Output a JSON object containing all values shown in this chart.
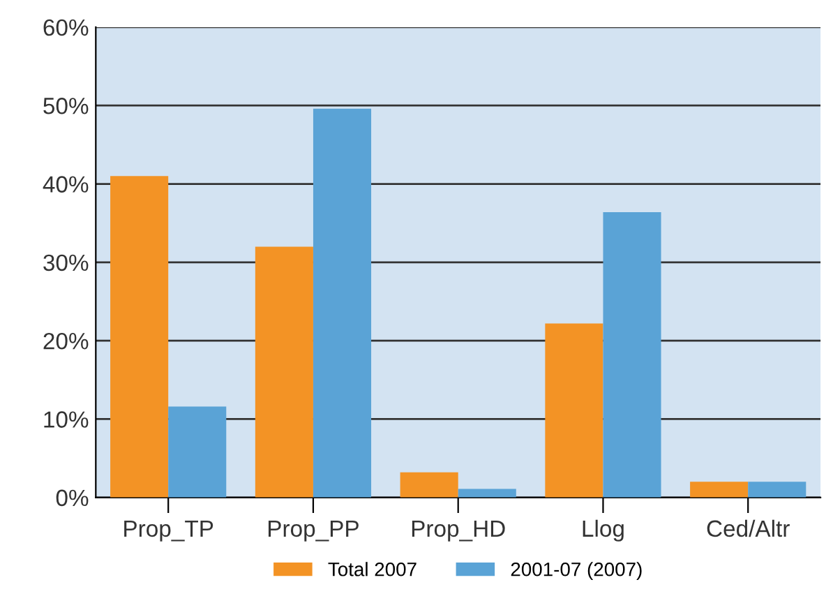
{
  "chart_data": {
    "type": "bar",
    "categories": [
      "Prop_TP",
      "Prop_PP",
      "Prop_HD",
      "Llog",
      "Ced/Altr"
    ],
    "series": [
      {
        "name": "Total 2007",
        "color": "#f39325",
        "values": [
          41.0,
          32.0,
          3.2,
          22.2,
          2.0
        ]
      },
      {
        "name": "2001-07 (2007)",
        "color": "#5aa3d6",
        "values": [
          11.6,
          49.6,
          1.1,
          36.4,
          2.0
        ]
      }
    ],
    "ylim": [
      0,
      60
    ],
    "yticks": [
      {
        "value": 0,
        "label": "0%"
      },
      {
        "value": 10,
        "label": "10%"
      },
      {
        "value": 20,
        "label": "20%"
      },
      {
        "value": 30,
        "label": "30%"
      },
      {
        "value": 40,
        "label": "40%"
      },
      {
        "value": 50,
        "label": "50%"
      },
      {
        "value": 60,
        "label": "60%"
      }
    ],
    "grid": "y",
    "legend": "bottom"
  }
}
